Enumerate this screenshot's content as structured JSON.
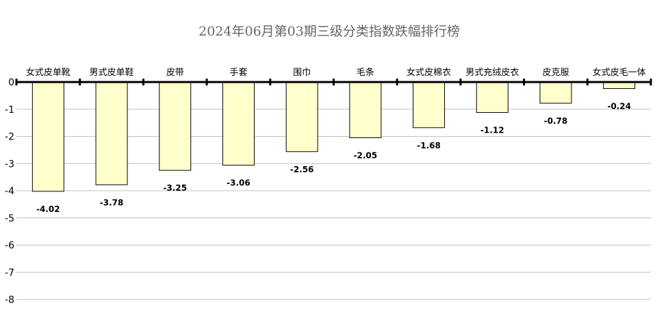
{
  "chart_data": {
    "type": "bar",
    "title": "2024年06月第03期三级分类指数跌幅排行榜",
    "xlabel": "",
    "ylabel": "",
    "categories": [
      "女式皮单靴",
      "男式皮单鞋",
      "皮带",
      "手套",
      "围巾",
      "毛条",
      "女式皮棉衣",
      "男式充绒皮衣",
      "皮克服",
      "女式皮毛一体"
    ],
    "values": [
      -4.02,
      -3.78,
      -3.25,
      -3.06,
      -2.56,
      -2.05,
      -1.68,
      -1.12,
      -0.78,
      -0.24
    ],
    "value_labels": [
      "-4.02",
      "-3.78",
      "-3.25",
      "-3.06",
      "-2.56",
      "-2.05",
      "-1.68",
      "-1.12",
      "-0.78",
      "-0.24"
    ],
    "yticks": [
      0,
      -1,
      -2,
      -3,
      -4,
      -5,
      -6,
      -7,
      -8
    ],
    "ytick_labels": [
      "0",
      "-1",
      "-2",
      "-3",
      "-4",
      "-5",
      "-6",
      "-7",
      "-8"
    ],
    "ylim": [
      -8,
      0
    ],
    "grid": true,
    "legend": "none",
    "colors": {
      "bar_fill": "#FFFFCC",
      "bar_stroke": "#000000",
      "grid": "#C0C0C0",
      "axis": "#000000",
      "title": "#666666"
    }
  }
}
